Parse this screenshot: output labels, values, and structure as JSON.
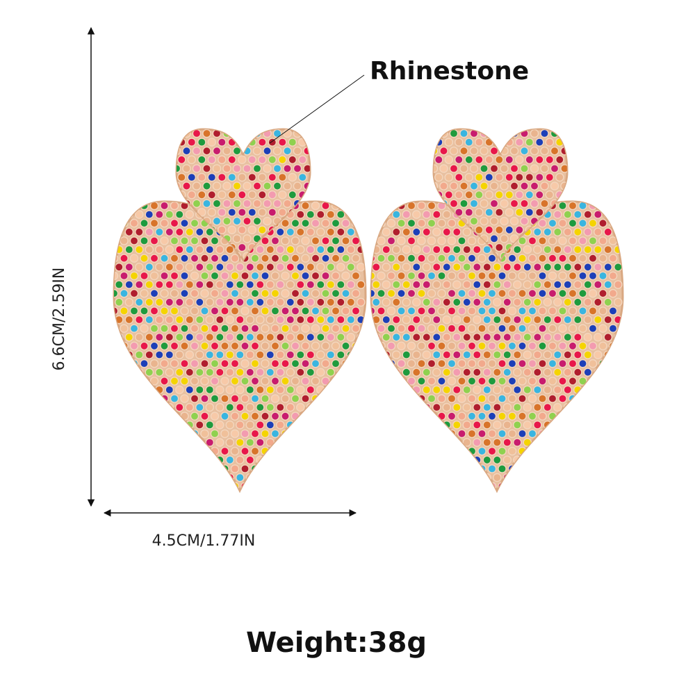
{
  "annotation": {
    "label": "Rhinestone"
  },
  "dimensions": {
    "height": "6.6CM/2.59IN",
    "width": "4.5CM/1.77IN"
  },
  "weight": "Weight:38g"
}
